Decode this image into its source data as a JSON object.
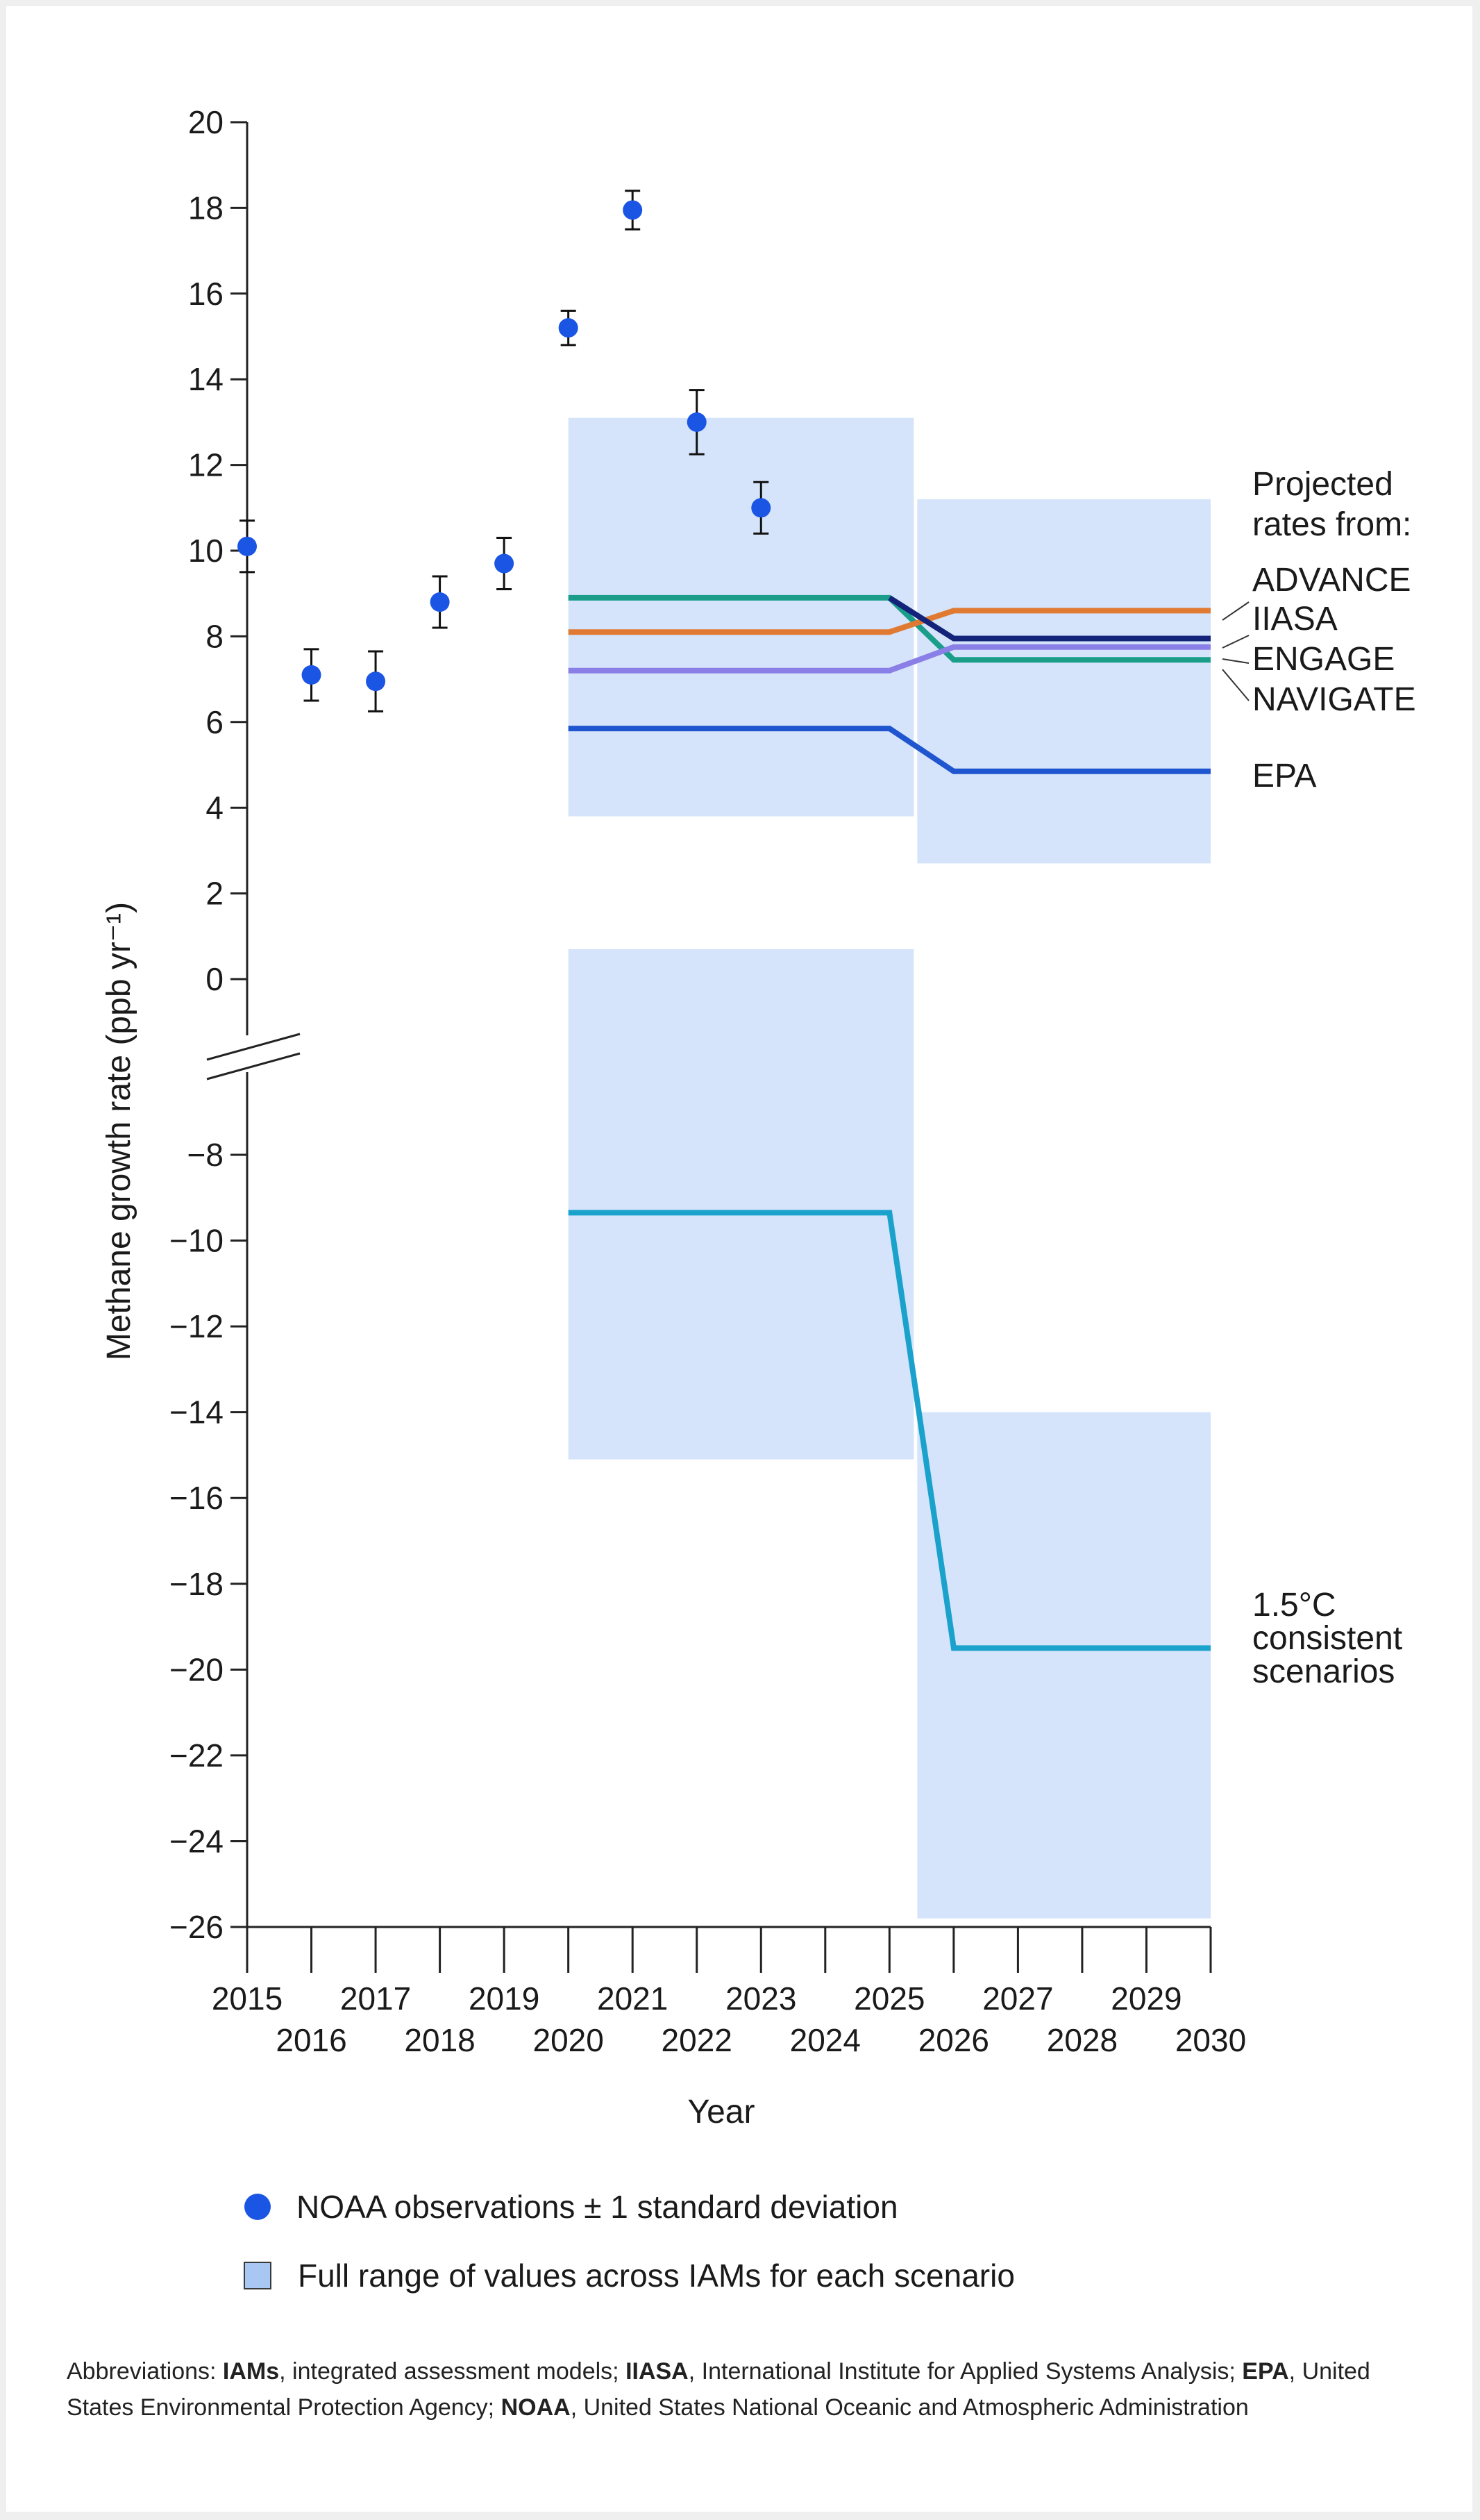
{
  "chart_data": {
    "type": "line",
    "ylabel": "Methane growth rate (ppb yr⁻¹)",
    "xlabel": "Year",
    "xlim": [
      2015,
      2030
    ],
    "ylim": [
      -26,
      20
    ],
    "axis_break": [
      -6,
      0
    ],
    "x_ticks_upper": [
      "2015",
      "2017",
      "2019",
      "2021",
      "2023",
      "2025",
      "2027",
      "2029"
    ],
    "x_ticks_lower": [
      "2016",
      "2018",
      "2020",
      "2022",
      "2024",
      "2026",
      "2028",
      "2030"
    ],
    "y_ticks": [
      "20",
      "18",
      "16",
      "14",
      "12",
      "10",
      "8",
      "6",
      "4",
      "2",
      "0",
      "−8",
      "−10",
      "−12",
      "−14",
      "−16",
      "−18",
      "−20",
      "−22",
      "−24",
      "−26"
    ],
    "observations": {
      "name": "NOAA observations ± 1 standard deviation",
      "points": [
        {
          "year": 2015,
          "value": 10.1,
          "sd": 0.6
        },
        {
          "year": 2016,
          "value": 7.1,
          "sd": 0.6
        },
        {
          "year": 2017,
          "value": 6.95,
          "sd": 0.7
        },
        {
          "year": 2018,
          "value": 8.8,
          "sd": 0.6
        },
        {
          "year": 2019,
          "value": 9.7,
          "sd": 0.6
        },
        {
          "year": 2020,
          "value": 15.2,
          "sd": 0.4
        },
        {
          "year": 2021,
          "value": 17.95,
          "sd": 0.45
        },
        {
          "year": 2022,
          "value": 13.0,
          "sd": 0.75
        },
        {
          "year": 2023,
          "value": 11.0,
          "sd": 0.6
        }
      ]
    },
    "ranges": {
      "name": "Full range of values across IAMs for each scenario",
      "boxes": [
        {
          "x": [
            2020,
            2025.4
          ],
          "y": [
            3.8,
            13.1
          ]
        },
        {
          "x": [
            2025.4,
            2030
          ],
          "y": [
            2.7,
            11.2
          ]
        },
        {
          "x": [
            2020,
            2025.4
          ],
          "y": [
            -15.1,
            0.7
          ]
        },
        {
          "x": [
            2025.4,
            2030
          ],
          "y": [
            -25.8,
            -14
          ]
        }
      ]
    },
    "series": [
      {
        "name": "NAVIGATE",
        "color": "#1a9e8a",
        "points": [
          [
            2020,
            8.9
          ],
          [
            2025,
            8.9
          ],
          [
            2026,
            7.45
          ],
          [
            2030,
            7.45
          ]
        ]
      },
      {
        "name": "ADVANCE",
        "color": "#e07a33",
        "points": [
          [
            2020,
            8.1
          ],
          [
            2025,
            8.1
          ],
          [
            2026,
            8.6
          ],
          [
            2030,
            8.6
          ]
        ]
      },
      {
        "name": "IIASA",
        "color": "#14237a",
        "points": [
          [
            2025,
            8.9
          ],
          [
            2026,
            7.95
          ],
          [
            2030,
            7.95
          ]
        ]
      },
      {
        "name": "ENGAGE",
        "color": "#8a7fe6",
        "points": [
          [
            2020,
            7.2
          ],
          [
            2025,
            7.2
          ],
          [
            2026,
            7.75
          ],
          [
            2030,
            7.75
          ]
        ]
      },
      {
        "name": "EPA",
        "color": "#1f56cf",
        "points": [
          [
            2020,
            5.85
          ],
          [
            2025,
            5.85
          ],
          [
            2026,
            4.85
          ],
          [
            2030,
            4.85
          ]
        ]
      },
      {
        "name": "1.5°C consistent scenarios",
        "color": "#1aa2cc",
        "points": [
          [
            2020,
            -9.35
          ],
          [
            2025,
            -9.35
          ],
          [
            2026,
            -19.5
          ],
          [
            2030,
            -19.5
          ]
        ]
      }
    ],
    "annotations": {
      "projected_title": [
        "Projected",
        "rates from:"
      ],
      "labels": [
        "ADVANCE",
        "IIASA",
        "ENGAGE",
        "NAVIGATE",
        "EPA"
      ],
      "scenario_label": [
        "1.5°C",
        "consistent",
        "scenarios"
      ]
    }
  },
  "legend": {
    "dot_label": "NOAA observations ± 1 standard deviation",
    "box_label": "Full range of values across IAMs for each scenario"
  },
  "footnote": {
    "prefix": "Abbreviations: ",
    "items": [
      {
        "abbr": "IAMs",
        "text": ", integrated assessment models; "
      },
      {
        "abbr": "IIASA",
        "text": ", International Institute for Applied Systems Analysis; "
      },
      {
        "abbr": "EPA",
        "text": ", United States Environmental Protection Agency; "
      },
      {
        "abbr": "NOAA",
        "text": ", United States National Oceanic and Atmospheric Administration"
      }
    ]
  }
}
